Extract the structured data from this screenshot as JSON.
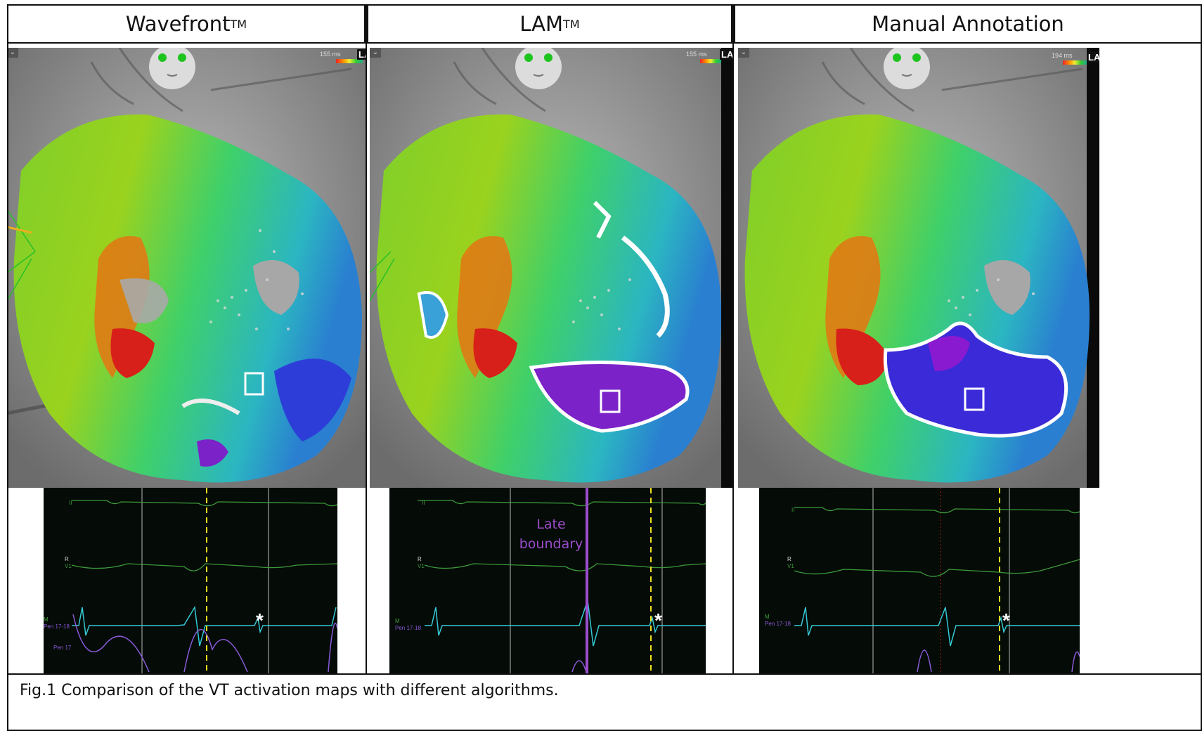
{
  "panels": [
    {
      "title": "Wavefront",
      "tm": "TM",
      "scale_label": "155 ms",
      "la_label": "LA"
    },
    {
      "title": "LAM",
      "tm": "TM",
      "scale_label": "155 ms",
      "la_label": "LA"
    },
    {
      "title": "Manual Annotation",
      "tm": "",
      "scale_label": "194 ms",
      "la_label": "LA"
    }
  ],
  "ecg": {
    "lead_ii": "II",
    "lead_r": "R",
    "lead_v1": "V1",
    "lead_m": "M",
    "pen_label": "Pen 17-18",
    "pen_label_2": "Pen 17",
    "asterisk": "*"
  },
  "late_boundary": {
    "line1": "Late",
    "line2": "boundary"
  },
  "caption": "Fig.1 Comparison of the VT activation maps with different algorithms.",
  "colors": {
    "late_boundary": "#9a4dcc",
    "dashed_marker": "#f0e020",
    "signal_green": "#3c9a3c",
    "signal_cyan": "#35c9d6",
    "signal_purple": "#8a5ad8"
  }
}
